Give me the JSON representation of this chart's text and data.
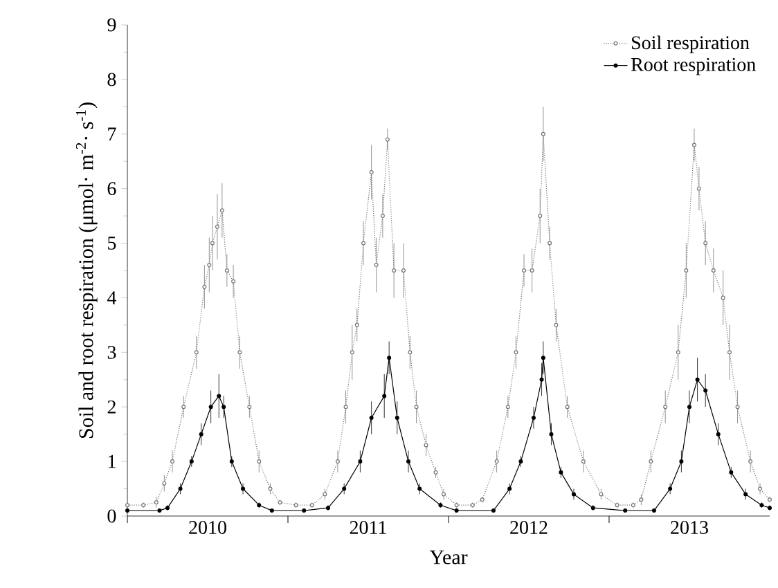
{
  "chart_data": {
    "type": "line",
    "xlabel": "Year",
    "ylabel": "Soil and root respiration  (μmol· m$^{-2}$· s$^{-1}$)",
    "xlim": [
      2010,
      2014
    ],
    "xticks": [
      {
        "value": 2010,
        "label": null
      },
      {
        "value": 2010.5,
        "label": "2010"
      },
      {
        "value": 2011,
        "label": null
      },
      {
        "value": 2011.5,
        "label": "2011"
      },
      {
        "value": 2012,
        "label": null
      },
      {
        "value": 2012.5,
        "label": "2012"
      },
      {
        "value": 2013,
        "label": null
      },
      {
        "value": 2013.5,
        "label": "2013"
      }
    ],
    "ylim": [
      0,
      9
    ],
    "yticks": [
      0,
      1,
      2,
      3,
      4,
      5,
      6,
      7,
      8,
      9
    ],
    "grid": false,
    "legend": "top right",
    "series": [
      {
        "name": "Soil respiration",
        "color": "#777777",
        "marker": "circle",
        "line_style": "dotted",
        "x": [
          2010.0,
          2010.1,
          2010.18,
          2010.23,
          2010.28,
          2010.35,
          2010.43,
          2010.48,
          2010.51,
          2010.53,
          2010.56,
          2010.59,
          2010.62,
          2010.66,
          2010.7,
          2010.76,
          2010.82,
          2010.89,
          2010.95,
          2011.05,
          2011.15,
          2011.23,
          2011.31,
          2011.36,
          2011.4,
          2011.43,
          2011.47,
          2011.52,
          2011.55,
          2011.59,
          2011.62,
          2011.66,
          2011.72,
          2011.76,
          2011.8,
          2011.86,
          2011.92,
          2011.97,
          2012.05,
          2012.15,
          2012.21,
          2012.3,
          2012.37,
          2012.42,
          2012.47,
          2012.52,
          2012.57,
          2012.59,
          2012.63,
          2012.67,
          2012.74,
          2012.84,
          2012.95,
          2013.05,
          2013.15,
          2013.2,
          2013.26,
          2013.35,
          2013.43,
          2013.48,
          2013.53,
          2013.56,
          2013.6,
          2013.65,
          2013.71,
          2013.75,
          2013.8,
          2013.88,
          2013.94,
          2014.0
        ],
        "values": [
          0.2,
          0.2,
          0.25,
          0.6,
          1.0,
          2.0,
          3.0,
          4.2,
          4.6,
          5.0,
          5.3,
          5.6,
          4.5,
          4.3,
          3.0,
          2.0,
          1.0,
          0.5,
          0.25,
          0.2,
          0.2,
          0.4,
          1.0,
          2.0,
          3.0,
          3.5,
          5.0,
          6.3,
          4.6,
          5.5,
          6.9,
          4.5,
          4.5,
          3.0,
          2.0,
          1.3,
          0.8,
          0.4,
          0.2,
          0.2,
          0.3,
          1.0,
          2.0,
          3.0,
          4.5,
          4.5,
          5.5,
          7.0,
          5.0,
          3.5,
          2.0,
          1.0,
          0.4,
          0.2,
          0.2,
          0.3,
          1.0,
          2.0,
          3.0,
          4.5,
          6.8,
          6.0,
          5.0,
          4.5,
          4.0,
          3.0,
          2.0,
          1.0,
          0.5,
          0.3
        ],
        "errors": [
          0.05,
          0.05,
          0.1,
          0.15,
          0.2,
          0.2,
          0.3,
          0.4,
          0.5,
          0.5,
          0.6,
          0.5,
          0.3,
          0.3,
          0.3,
          0.2,
          0.2,
          0.1,
          0.05,
          0.05,
          0.05,
          0.1,
          0.2,
          0.3,
          0.5,
          0.3,
          0.4,
          0.5,
          0.5,
          0.4,
          0.2,
          0.5,
          0.5,
          0.3,
          0.3,
          0.2,
          0.1,
          0.1,
          0.05,
          0.05,
          0.05,
          0.2,
          0.2,
          0.3,
          0.3,
          0.4,
          0.5,
          0.5,
          0.3,
          0.3,
          0.2,
          0.2,
          0.1,
          0.05,
          0.05,
          0.1,
          0.2,
          0.3,
          0.5,
          0.5,
          0.3,
          0.4,
          0.4,
          0.4,
          0.5,
          0.5,
          0.3,
          0.2,
          0.1,
          0.05
        ]
      },
      {
        "name": "Root respiration",
        "color": "#000000",
        "marker": "circle",
        "line_style": "solid",
        "x": [
          2010.0,
          2010.2,
          2010.25,
          2010.33,
          2010.4,
          2010.46,
          2010.52,
          2010.57,
          2010.6,
          2010.65,
          2010.72,
          2010.82,
          2010.9,
          2011.1,
          2011.25,
          2011.35,
          2011.45,
          2011.52,
          2011.6,
          2011.63,
          2011.68,
          2011.75,
          2011.82,
          2011.95,
          2012.05,
          2012.28,
          2012.38,
          2012.45,
          2012.53,
          2012.58,
          2012.59,
          2012.64,
          2012.7,
          2012.78,
          2012.9,
          2013.1,
          2013.28,
          2013.38,
          2013.45,
          2013.5,
          2013.55,
          2013.6,
          2013.68,
          2013.76,
          2013.85,
          2013.95,
          2014.0
        ],
        "values": [
          0.1,
          0.1,
          0.15,
          0.5,
          1.0,
          1.5,
          2.0,
          2.2,
          2.0,
          1.0,
          0.5,
          0.2,
          0.1,
          0.1,
          0.15,
          0.5,
          1.0,
          1.8,
          2.2,
          2.9,
          1.8,
          1.0,
          0.5,
          0.2,
          0.1,
          0.1,
          0.5,
          1.0,
          1.8,
          2.5,
          2.9,
          1.5,
          0.8,
          0.4,
          0.15,
          0.1,
          0.1,
          0.5,
          1.0,
          2.0,
          2.5,
          2.3,
          1.5,
          0.8,
          0.4,
          0.2,
          0.15
        ],
        "errors": [
          0.03,
          0.03,
          0.05,
          0.1,
          0.1,
          0.2,
          0.3,
          0.4,
          0.2,
          0.1,
          0.1,
          0.05,
          0.03,
          0.03,
          0.05,
          0.1,
          0.2,
          0.3,
          0.4,
          0.3,
          0.3,
          0.2,
          0.1,
          0.05,
          0.03,
          0.03,
          0.1,
          0.1,
          0.2,
          0.3,
          0.3,
          0.2,
          0.1,
          0.1,
          0.05,
          0.03,
          0.03,
          0.1,
          0.2,
          0.3,
          0.4,
          0.3,
          0.2,
          0.1,
          0.1,
          0.05,
          0.05
        ]
      }
    ]
  }
}
